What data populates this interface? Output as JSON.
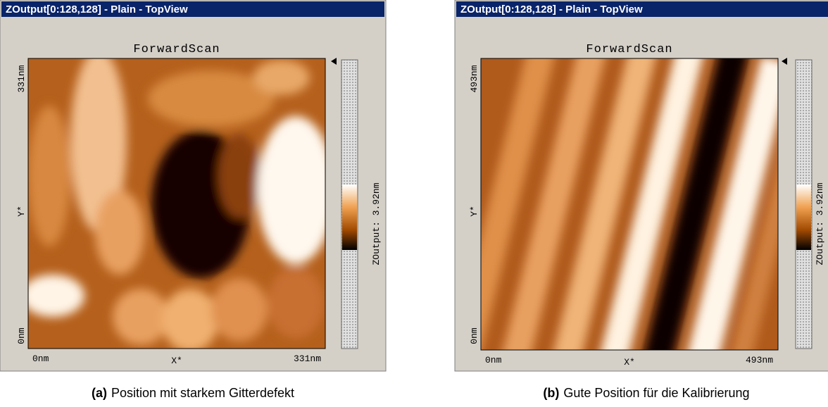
{
  "panels": [
    {
      "window_title": "ZOutput[0:128,128] - Plain - TopView",
      "scan_title": "ForwardScan",
      "y_axis": {
        "top": "331nm",
        "mid": "Y*",
        "bottom": "0nm"
      },
      "x_axis": {
        "left": "0nm",
        "mid": "X*",
        "right": "331nm"
      },
      "colorbar_label": "ZOutput: 3.92nm",
      "caption": {
        "label": "(a)",
        "text": "Position mit starkem Gitterdefekt"
      }
    },
    {
      "window_title": "ZOutput[0:128,128] - Plain - TopView",
      "scan_title": "ForwardScan",
      "y_axis": {
        "top": "493nm",
        "mid": "Y*",
        "bottom": "0nm"
      },
      "x_axis": {
        "left": "0nm",
        "mid": "X*",
        "right": "493nm"
      },
      "colorbar_label": "ZOutput: 3.92nm",
      "caption": {
        "label": "(b)",
        "text": "Gute Position für die Kalibrierung"
      }
    }
  ]
}
